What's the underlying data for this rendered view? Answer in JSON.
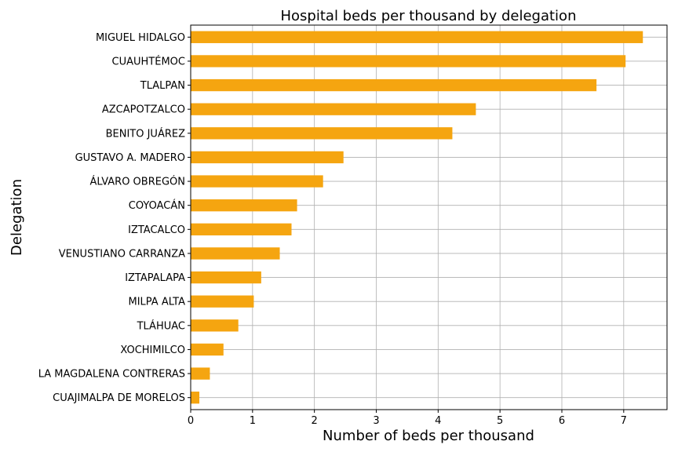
{
  "chart_data": {
    "type": "bar",
    "orientation": "horizontal",
    "title": "Hospital beds per thousand by delegation",
    "xlabel": "Number of beds per thousand",
    "ylabel": "Delegation",
    "xlim": [
      0,
      7.7
    ],
    "xticks": [
      0,
      1,
      2,
      3,
      4,
      5,
      6,
      7
    ],
    "grid": true,
    "bar_color": "#f5a510",
    "categories": [
      "MIGUEL HIDALGO",
      "CUAUHTÉMOC",
      "TLALPAN",
      "AZCAPOTZALCO",
      "BENITO JUÁREZ",
      "GUSTAVO A. MADERO",
      "ÁLVARO OBREGÓN",
      "COYOACÁN",
      "IZTACALCO",
      "VENUSTIANO CARRANZA",
      "IZTAPALAPA",
      "MILPA ALTA",
      "TLÁHUAC",
      "XOCHIMILCO",
      "LA MAGDALENA CONTRERAS",
      "CUAJIMALPA DE MORELOS"
    ],
    "values": [
      7.31,
      7.03,
      6.56,
      4.61,
      4.23,
      2.47,
      2.14,
      1.72,
      1.63,
      1.44,
      1.14,
      1.02,
      0.77,
      0.53,
      0.31,
      0.14
    ]
  }
}
